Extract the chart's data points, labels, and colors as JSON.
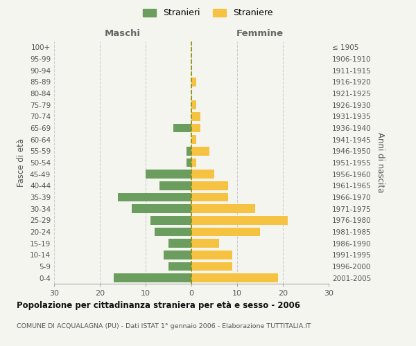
{
  "age_groups": [
    "0-4",
    "5-9",
    "10-14",
    "15-19",
    "20-24",
    "25-29",
    "30-34",
    "35-39",
    "40-44",
    "45-49",
    "50-54",
    "55-59",
    "60-64",
    "65-69",
    "70-74",
    "75-79",
    "80-84",
    "85-89",
    "90-94",
    "95-99",
    "100+"
  ],
  "birth_years": [
    "2001-2005",
    "1996-2000",
    "1991-1995",
    "1986-1990",
    "1981-1985",
    "1976-1980",
    "1971-1975",
    "1966-1970",
    "1961-1965",
    "1956-1960",
    "1951-1955",
    "1946-1950",
    "1941-1945",
    "1936-1940",
    "1931-1935",
    "1926-1930",
    "1921-1925",
    "1916-1920",
    "1911-1915",
    "1906-1910",
    "≤ 1905"
  ],
  "maschi": [
    17,
    5,
    6,
    5,
    8,
    9,
    13,
    16,
    7,
    10,
    1,
    1,
    0,
    4,
    0,
    0,
    0,
    0,
    0,
    0,
    0
  ],
  "femmine": [
    19,
    9,
    9,
    6,
    15,
    21,
    14,
    8,
    8,
    5,
    1,
    4,
    1,
    2,
    2,
    1,
    0,
    1,
    0,
    0,
    0
  ],
  "male_color": "#6b9e5e",
  "female_color": "#f5c242",
  "background_color": "#f5f5f0",
  "grid_color": "#cccccc",
  "center_line_color": "#8b8b00",
  "title": "Popolazione per cittadinanza straniera per età e sesso - 2006",
  "subtitle": "COMUNE DI ACQUALAGNA (PU) - Dati ISTAT 1° gennaio 2006 - Elaborazione TUTTITALIA.IT",
  "xlabel_left": "Maschi",
  "xlabel_right": "Femmine",
  "ylabel_left": "Fasce di età",
  "ylabel_right": "Anni di nascita",
  "legend_male": "Stranieri",
  "legend_female": "Straniere",
  "xlim": 30
}
